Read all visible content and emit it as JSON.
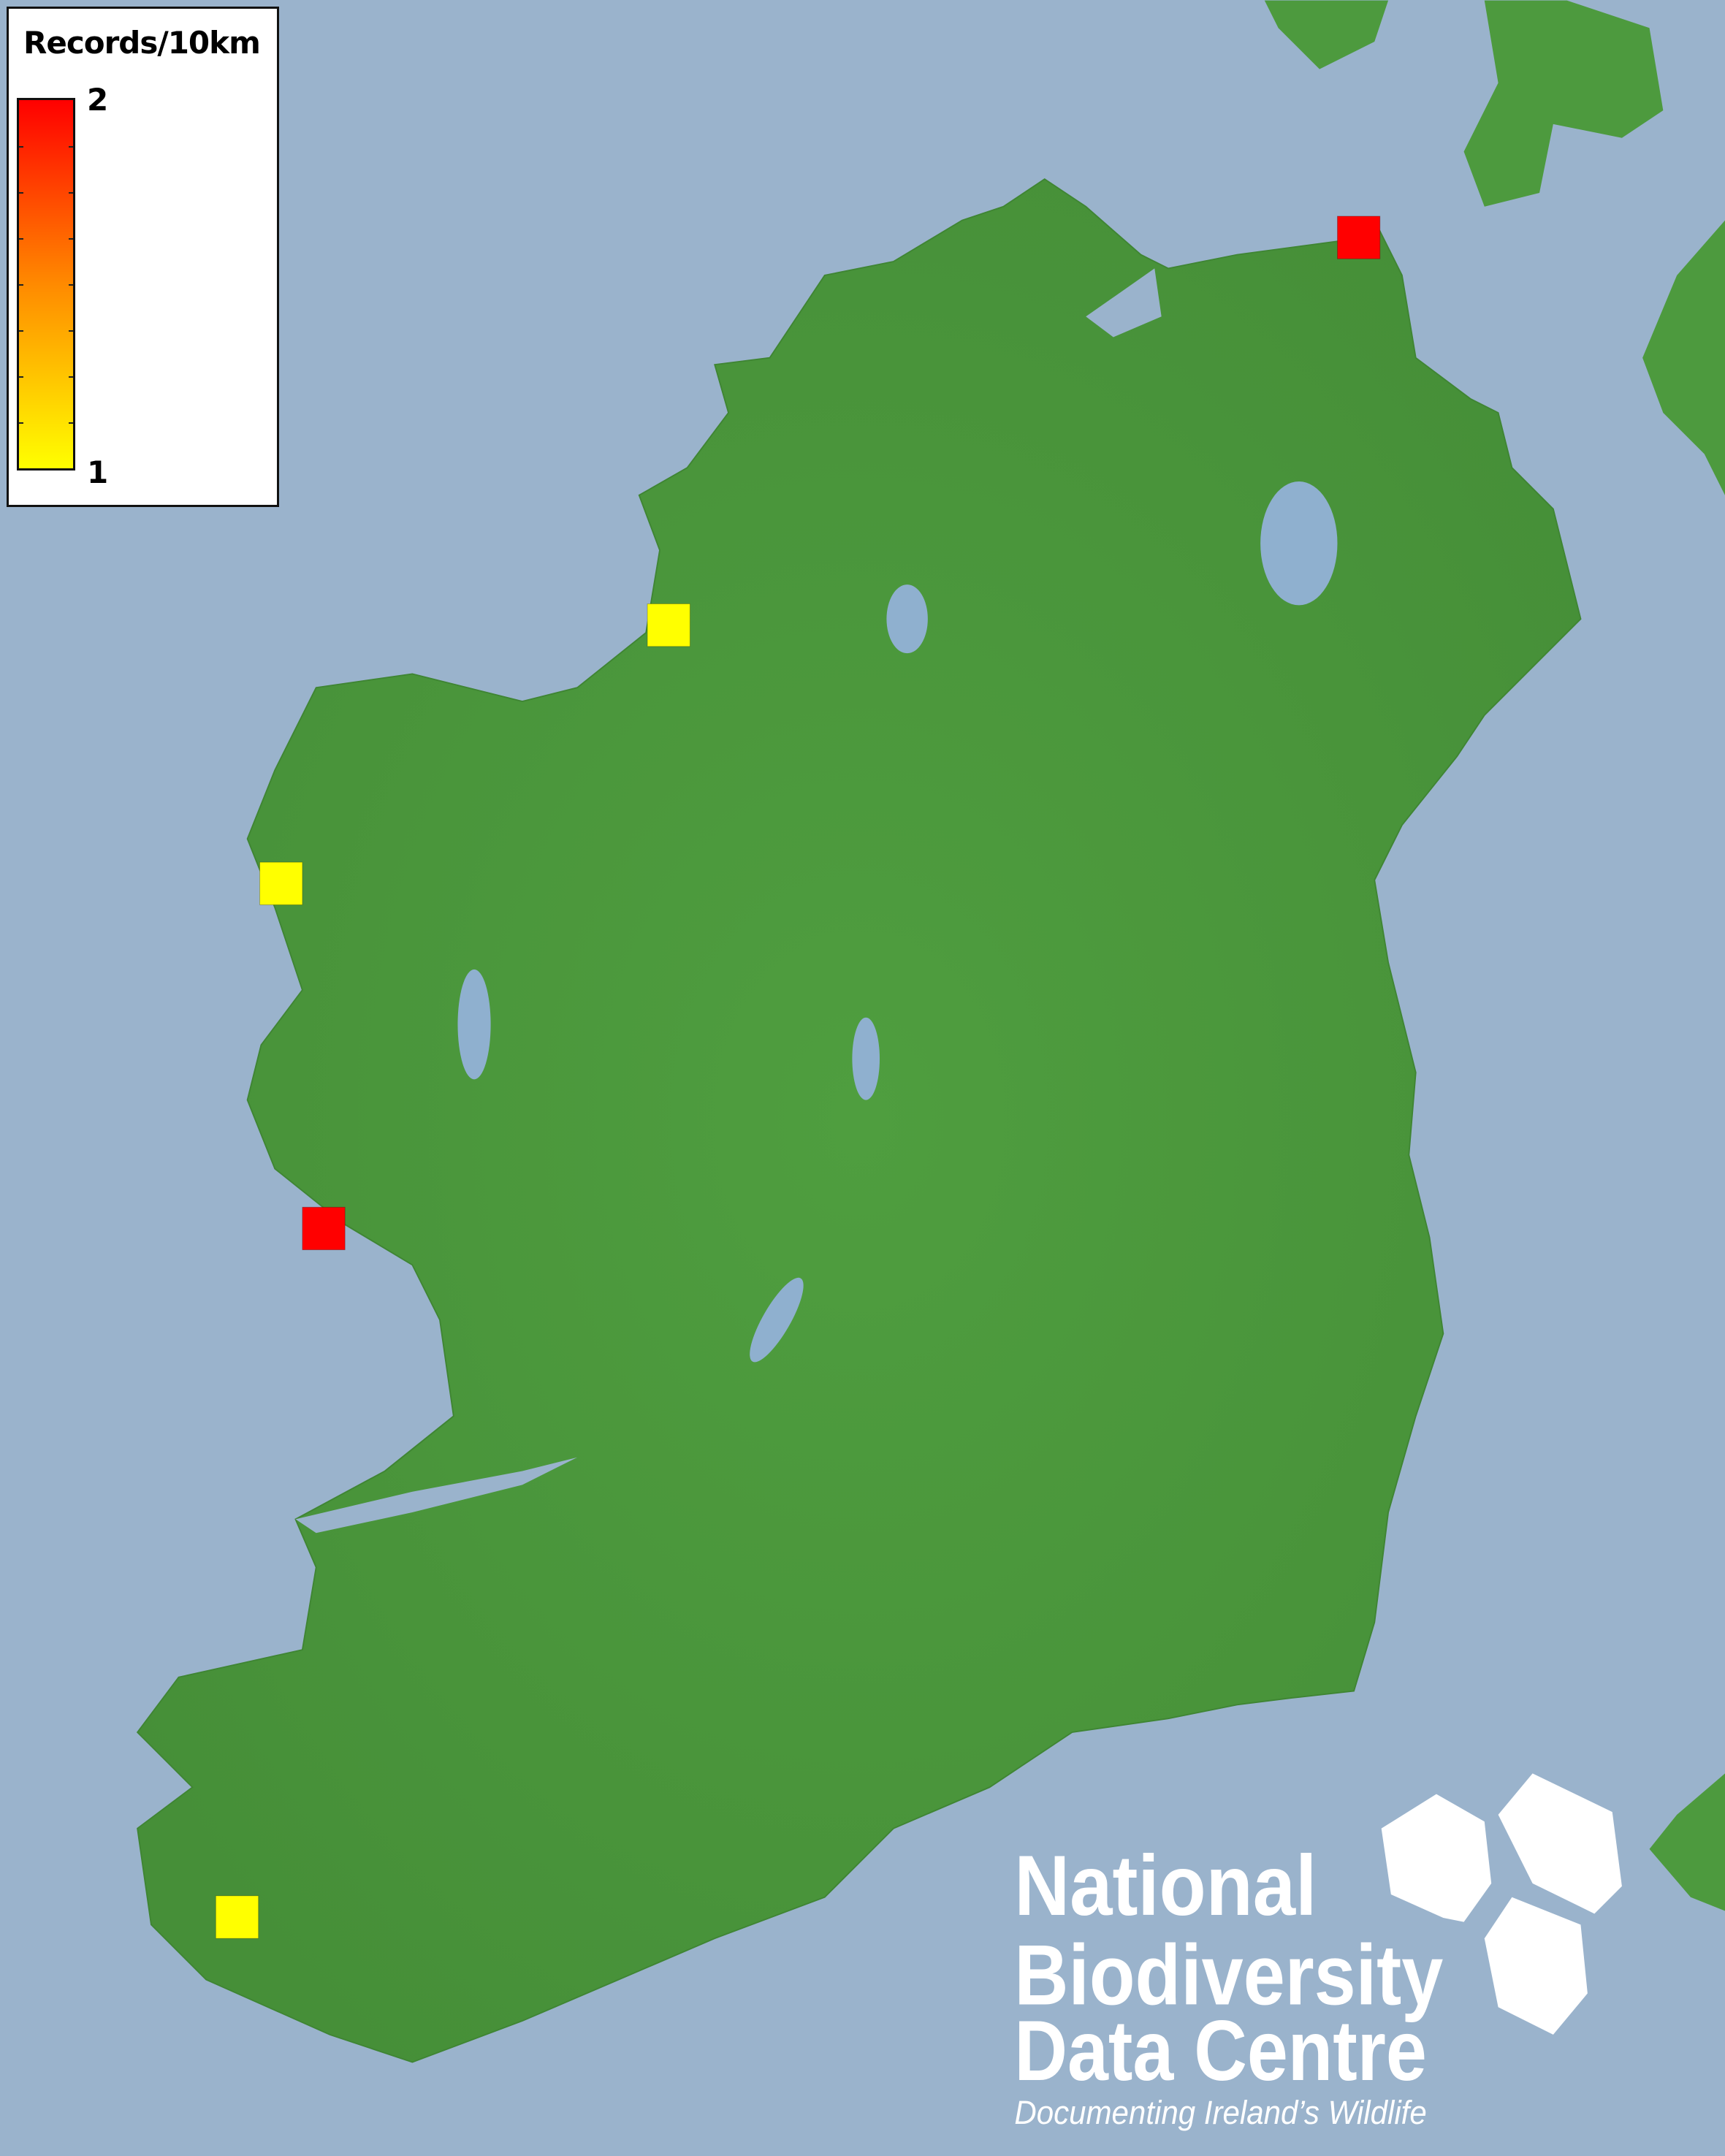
{
  "legend": {
    "title": "Records/10km",
    "max_label": "2",
    "min_label": "1",
    "color_max": "#ff0000",
    "color_min": "#ffff00"
  },
  "colors": {
    "sea": "#9ab3cc",
    "land": "#4a9a3c",
    "lakes": "#8fb0cf"
  },
  "records": [
    {
      "value": 2,
      "color": "#ff0000"
    },
    {
      "value": 1,
      "color": "#ffff00"
    },
    {
      "value": 1,
      "color": "#ffff00"
    },
    {
      "value": 2,
      "color": "#ff0000"
    },
    {
      "value": 1,
      "color": "#ffff00"
    }
  ],
  "logo": {
    "line1": "National",
    "line2": "Biodiversity",
    "line3": "Data Centre",
    "tagline": "Documenting Ireland’s Wildlife"
  }
}
